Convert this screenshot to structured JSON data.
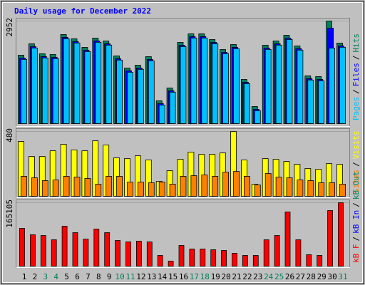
{
  "chart_data": [
    {
      "type": "bar",
      "title": "Daily usage for December 2022",
      "ylim": [
        0,
        2952
      ],
      "yticks": [
        2952
      ],
      "legend_separator": "/",
      "series": [
        {
          "name": "Hits",
          "color": "#00805c",
          "values": [
            1968,
            2296,
            2009,
            1989,
            2563,
            2440,
            2194,
            2460,
            2378,
            1948,
            1599,
            1681,
            1927,
            656,
            1025,
            2337,
            2583,
            2583,
            2419,
            2132,
            2276,
            1271,
            492,
            2255,
            2378,
            2542,
            2235,
            1374,
            1353,
            2952,
            2317
          ]
        },
        {
          "name": "Files",
          "color": "#0000ff",
          "values": [
            1888,
            2216,
            1929,
            1909,
            2483,
            2360,
            2114,
            2380,
            2298,
            1868,
            1519,
            1601,
            1847,
            576,
            945,
            2257,
            2503,
            2503,
            2339,
            2052,
            2196,
            1191,
            412,
            2175,
            2298,
            2462,
            2155,
            1294,
            1273,
            2747,
            2237
          ]
        },
        {
          "name": "Pages",
          "color": "#00c0ff",
          "values": [
            1848,
            2176,
            1889,
            1869,
            2443,
            2320,
            2074,
            2340,
            2258,
            1828,
            1479,
            1561,
            1807,
            536,
            905,
            2217,
            2463,
            2463,
            2299,
            2012,
            2156,
            1151,
            372,
            2135,
            2258,
            2422,
            2115,
            1254,
            1233,
            2173,
            2197
          ]
        }
      ]
    },
    {
      "type": "bar",
      "ylim": [
        0,
        480
      ],
      "yticks": [
        480
      ],
      "legend_separator": "/",
      "series": [
        {
          "name": "Visits",
          "color": "#ffff00",
          "values": [
            406,
            295,
            295,
            337,
            385,
            343,
            337,
            411,
            380,
            285,
            279,
            300,
            269,
            111,
            190,
            274,
            327,
            311,
            311,
            321,
            480,
            269,
            90,
            279,
            274,
            258,
            237,
            206,
            200,
            242,
            237
          ]
        },
        {
          "name": "Sites",
          "color": "#ff8000",
          "values": [
            148,
            137,
            116,
            121,
            148,
            142,
            132,
            90,
            148,
            148,
            105,
            105,
            100,
            105,
            90,
            148,
            153,
            158,
            148,
            179,
            184,
            148,
            84,
            169,
            142,
            137,
            121,
            116,
            100,
            100,
            90
          ]
        }
      ]
    },
    {
      "type": "bar",
      "ylim": [
        0,
        165105
      ],
      "yticks": [
        165105
      ],
      "legend_separator": "/",
      "series": [
        {
          "name": "kB F",
          "color": "#ff0000",
          "values": [
            98315,
            81620,
            79765,
            68635,
            103880,
            87185,
            70490,
            96460,
            87185,
            66780,
            63070,
            64925,
            63070,
            27825,
            12985,
            53795,
            44520,
            44520,
            42665,
            40810,
            33390,
            27825,
            27825,
            68635,
            79765,
            140980,
            68635,
            29680,
            27825,
            144690,
            165105
          ]
        }
      ],
      "legend_only": [
        {
          "name": "kB In",
          "color": "#0000ff"
        },
        {
          "name": "kB Out",
          "color": "#00805c"
        }
      ],
      "categories": [
        "1",
        "2",
        "3",
        "4",
        "5",
        "6",
        "7",
        "8",
        "9",
        "10",
        "11",
        "12",
        "13",
        "14",
        "15",
        "16",
        "17",
        "18",
        "19",
        "20",
        "21",
        "22",
        "23",
        "24",
        "25",
        "26",
        "27",
        "28",
        "29",
        "30",
        "31"
      ],
      "category_colors": [
        "#000000",
        "#000000",
        "#00805c",
        "#00805c",
        "#000000",
        "#000000",
        "#000000",
        "#000000",
        "#000000",
        "#00805c",
        "#00805c",
        "#000000",
        "#000000",
        "#000000",
        "#000000",
        "#000000",
        "#00805c",
        "#00805c",
        "#000000",
        "#000000",
        "#000000",
        "#000000",
        "#000000",
        "#00805c",
        "#00805c",
        "#000000",
        "#000000",
        "#000000",
        "#000000",
        "#000000",
        "#00805c"
      ]
    }
  ]
}
